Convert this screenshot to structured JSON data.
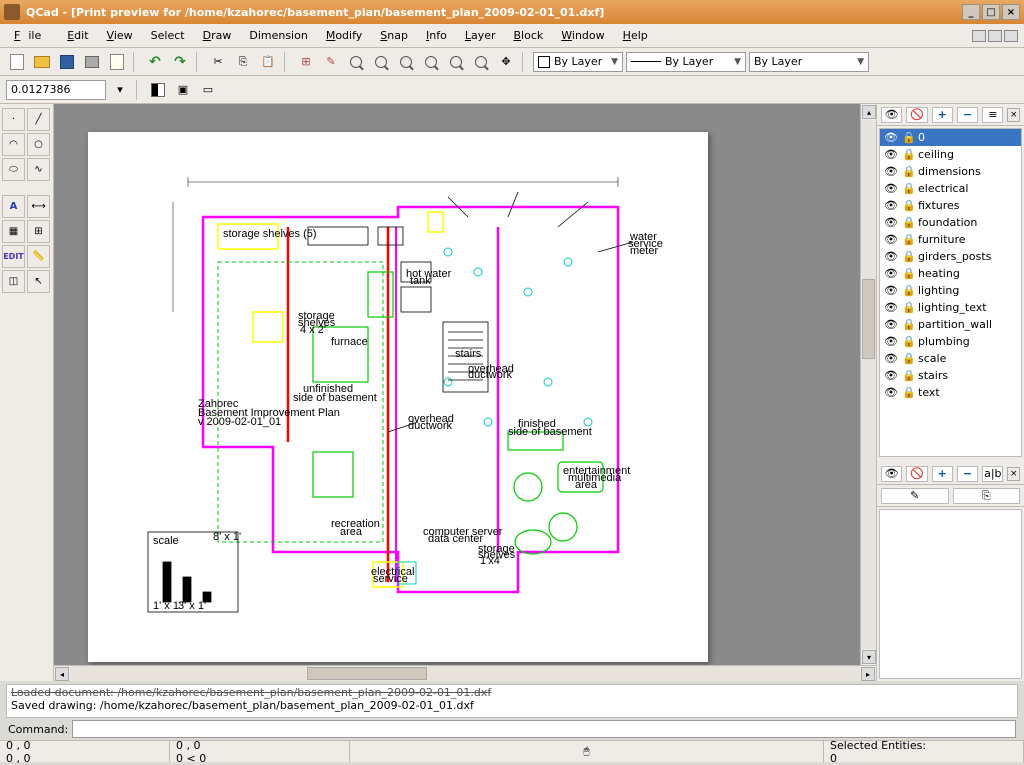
{
  "window": {
    "title": "QCad - [Print preview for /home/kzahorec/basement_plan/basement_plan_2009-02-01_01.dxf]",
    "minimize": "_",
    "maximize": "□",
    "close": "×"
  },
  "menu": {
    "file": "File",
    "edit": "Edit",
    "view": "View",
    "select": "Select",
    "draw": "Draw",
    "dimension": "Dimension",
    "modify": "Modify",
    "snap": "Snap",
    "info": "Info",
    "layer": "Layer",
    "block": "Block",
    "window": "Window",
    "help": "Help"
  },
  "toolbar2": {
    "scale_value": "0.0127386",
    "color_combo": "By Layer",
    "width_combo": "By Layer",
    "linetype_combo": "By Layer"
  },
  "left_tools": {
    "edit_label": "EDIT"
  },
  "layers": {
    "plus": "+",
    "minus": "−",
    "items": [
      {
        "name": "0",
        "selected": true
      },
      {
        "name": "ceiling"
      },
      {
        "name": "dimensions"
      },
      {
        "name": "electrical"
      },
      {
        "name": "fixtures"
      },
      {
        "name": "foundation"
      },
      {
        "name": "furniture"
      },
      {
        "name": "girders_posts"
      },
      {
        "name": "heating"
      },
      {
        "name": "lighting"
      },
      {
        "name": "lighting_text"
      },
      {
        "name": "partition_wall"
      },
      {
        "name": "plumbing"
      },
      {
        "name": "scale"
      },
      {
        "name": "stairs"
      },
      {
        "name": "text"
      }
    ]
  },
  "blocks": {
    "rename": "a|b"
  },
  "cmdlog": {
    "line1": "Loaded document: /home/kzahorec/basement_plan/basement_plan_2009-02-01_01.dxf",
    "line2": "Saved drawing: /home/kzahorec/basement_plan/basement_plan_2009-02-01_01.dxf"
  },
  "cmdline": {
    "label": "Command:"
  },
  "status": {
    "abs1": "0 , 0",
    "abs2": "0 , 0",
    "rel1": "0 , 0",
    "rel2": "0 < 0",
    "sel_label": "Selected Entities:",
    "sel_count": "0"
  },
  "plan": {
    "title1": "Zahorec",
    "title2": "Basement Improvement Plan",
    "title3": "v 2009-02-01_01",
    "room_unfinished1": "unfinished",
    "room_unfinished2": "side of basement",
    "room_finished1": "finished",
    "room_finished2": "side of basement",
    "furnace": "furnace",
    "hotwater1": "hot water",
    "hotwater2": "tank",
    "stairs": "stairs",
    "overhead1": "overhead",
    "overhead2": "ductwork",
    "recreation1": "recreation",
    "recreation2": "area",
    "entertain1": "entertainment",
    "entertain2": "multimedia",
    "entertain3": "area",
    "storage1": "storage shelves (5)",
    "storage2a": "storage",
    "storage2b": "shelves",
    "storage2c": "4 x 2'",
    "computer1": "computer server",
    "computer2": "data center",
    "electrical1": "electrical",
    "electrical2": "service",
    "water1": "water",
    "water2": "service",
    "water3": "meter",
    "storage3a": "storage",
    "storage3b": "shelves",
    "storage3c": "1'x4'",
    "overhead_d1": "overhead",
    "overhead_d2": "ductwork",
    "scale_label": "scale",
    "scale_8": "8' x 1'",
    "scale_3": "3' x 1'",
    "scale_1": "1' x 1'",
    "colors": {
      "magenta": "#ff00ff",
      "red": "#ff0000",
      "green": "#00ff00",
      "yellow": "#ffff00",
      "cyan": "#00ffff",
      "black": "#000000",
      "gray": "#999999",
      "darkgreen": "#009900"
    }
  }
}
